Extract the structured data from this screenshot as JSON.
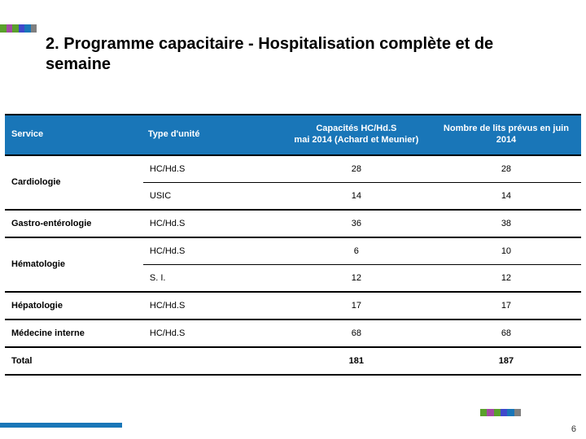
{
  "accent_colors": [
    "#5aa02c",
    "#a349a4",
    "#5aa02c",
    "#3f48cc",
    "#1976b8",
    "#7f7f7f"
  ],
  "title": "2. Programme capacitaire - Hospitalisation complète et de semaine",
  "table": {
    "headers": {
      "service": "Service",
      "type": "Type d'unité",
      "capacity": "Capacités HC/Hd.S\nmai 2014 (Achard et Meunier)",
      "planned": "Nombre de lits prévus en juin 2014"
    },
    "col_widths": [
      "24%",
      "24%",
      "26%",
      "26%"
    ],
    "header_bg": "#1976b8",
    "header_fg": "#ffffff",
    "sections": [
      {
        "service": "Cardiologie",
        "rows": [
          {
            "type": "HC/Hd.S",
            "capacity": 28,
            "planned": 28
          },
          {
            "type": "USIC",
            "capacity": 14,
            "planned": 14
          }
        ]
      },
      {
        "service": "Gastro-entérologie",
        "rows": [
          {
            "type": "HC/Hd.S",
            "capacity": 36,
            "planned": 38
          }
        ]
      },
      {
        "service": "Hématologie",
        "rows": [
          {
            "type": "HC/Hd.S",
            "capacity": 6,
            "planned": 10
          },
          {
            "type": "S. I.",
            "capacity": 12,
            "planned": 12
          }
        ]
      },
      {
        "service": "Hépatologie",
        "rows": [
          {
            "type": "HC/Hd.S",
            "capacity": 17,
            "planned": 17
          }
        ]
      },
      {
        "service": "Médecine interne",
        "rows": [
          {
            "type": "HC/Hd.S",
            "capacity": 68,
            "planned": 68
          }
        ]
      }
    ],
    "total": {
      "label": "Total",
      "capacity": 181,
      "planned": 187
    }
  },
  "page_number": 6
}
